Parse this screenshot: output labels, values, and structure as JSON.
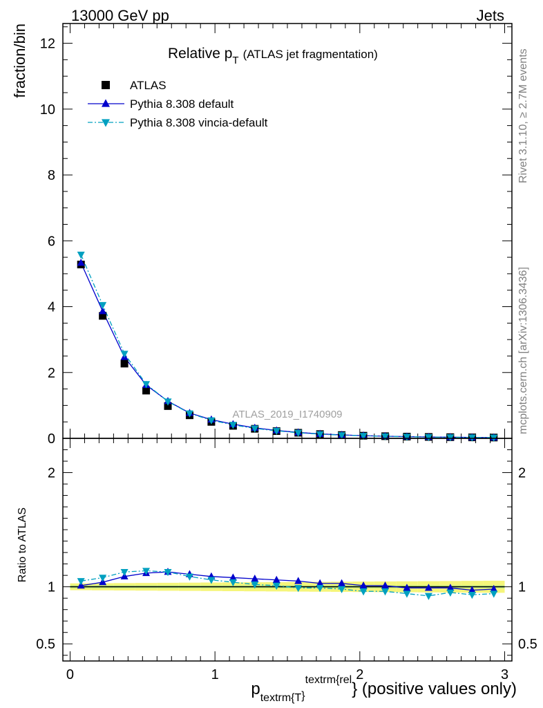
{
  "header": {
    "left": "13000 GeV pp",
    "right": "Jets"
  },
  "side_labels": {
    "rivet": "Rivet 3.1.10, ≥ 2.7M events",
    "mcplots": "mcplots.cern.ch [arXiv:1306.3436]"
  },
  "chart_data": {
    "type": "scatter",
    "title_main": "Relative p",
    "title_sub": "T",
    "title_rest": "(ATLAS jet fragmentation)",
    "watermark": "ATLAS_2019_I1740909",
    "ylabel": "fraction/bin",
    "ratio_ylabel": "Ratio to ATLAS",
    "xlabel": {
      "p": "p",
      "sub": "textrm{T",
      "sup": "textrm{rel",
      "brace": "}",
      "rest": "} (positive values only)"
    },
    "xlim": [
      -0.05,
      3.05
    ],
    "ylim": [
      0,
      12.6
    ],
    "ratio_ylim": [
      0.35,
      2.3
    ],
    "x_ticks": [
      {
        "v": 0,
        "label": "0"
      },
      {
        "v": 1,
        "label": "1"
      },
      {
        "v": 2,
        "label": "2"
      },
      {
        "v": 3,
        "label": "3"
      }
    ],
    "y_ticks": [
      {
        "v": 0,
        "label": "0"
      },
      {
        "v": 2,
        "label": "2"
      },
      {
        "v": 4,
        "label": "4"
      },
      {
        "v": 6,
        "label": "6"
      },
      {
        "v": 8,
        "label": "8"
      },
      {
        "v": 10,
        "label": "10"
      },
      {
        "v": 12,
        "label": "12"
      }
    ],
    "ratio_y_ticks": [
      {
        "v": 0.5,
        "label": "0.5"
      },
      {
        "v": 1,
        "label": "1"
      },
      {
        "v": 2,
        "label": "2"
      }
    ],
    "x": [
      0.075,
      0.225,
      0.375,
      0.525,
      0.675,
      0.825,
      0.975,
      1.125,
      1.275,
      1.425,
      1.575,
      1.725,
      1.875,
      2.025,
      2.175,
      2.325,
      2.475,
      2.625,
      2.775,
      2.925
    ],
    "series": [
      {
        "name": "ATLAS",
        "color": "#000000",
        "marker": "square",
        "values": [
          5.28,
          3.72,
          2.27,
          1.45,
          0.98,
          0.7,
          0.5,
          0.38,
          0.29,
          0.22,
          0.17,
          0.13,
          0.1,
          0.08,
          0.065,
          0.053,
          0.043,
          0.036,
          0.03,
          0.025
        ],
        "ratio": [
          1,
          1,
          1,
          1,
          1,
          1,
          1,
          1,
          1,
          1,
          1,
          1,
          1,
          1,
          1,
          1,
          1,
          1,
          1,
          1
        ],
        "band_inner": 0.012,
        "band_outer": 0.03
      },
      {
        "name": "Pythia 8.308 default",
        "color": "#0000cc",
        "marker": "triangle-up",
        "line": "solid",
        "values": [
          5.33,
          3.86,
          2.47,
          1.62,
          1.13,
          0.77,
          0.57,
          0.43,
          0.32,
          0.24,
          0.18,
          0.135,
          0.105,
          0.082,
          0.066,
          0.052,
          0.042,
          0.035,
          0.029,
          0.024
        ],
        "ratio": [
          1.01,
          1.04,
          1.09,
          1.12,
          1.13,
          1.11,
          1.09,
          1.08,
          1.07,
          1.06,
          1.05,
          1.03,
          1.03,
          1.01,
          1.01,
          0.99,
          0.99,
          0.99,
          0.97,
          0.98
        ]
      },
      {
        "name": "Pythia 8.308 vincia-default",
        "color": "#00a0c0",
        "marker": "triangle-down",
        "line": "dashdot",
        "values": [
          5.58,
          4.05,
          2.57,
          1.65,
          1.12,
          0.76,
          0.55,
          0.41,
          0.3,
          0.23,
          0.17,
          0.127,
          0.098,
          0.077,
          0.062,
          0.049,
          0.039,
          0.034,
          0.028,
          0.023
        ],
        "ratio": [
          1.05,
          1.08,
          1.13,
          1.14,
          1.13,
          1.09,
          1.06,
          1.04,
          1.02,
          1.01,
          0.99,
          0.99,
          0.98,
          0.96,
          0.96,
          0.94,
          0.92,
          0.95,
          0.93,
          0.94
        ]
      }
    ],
    "legend_position": "top-left"
  }
}
